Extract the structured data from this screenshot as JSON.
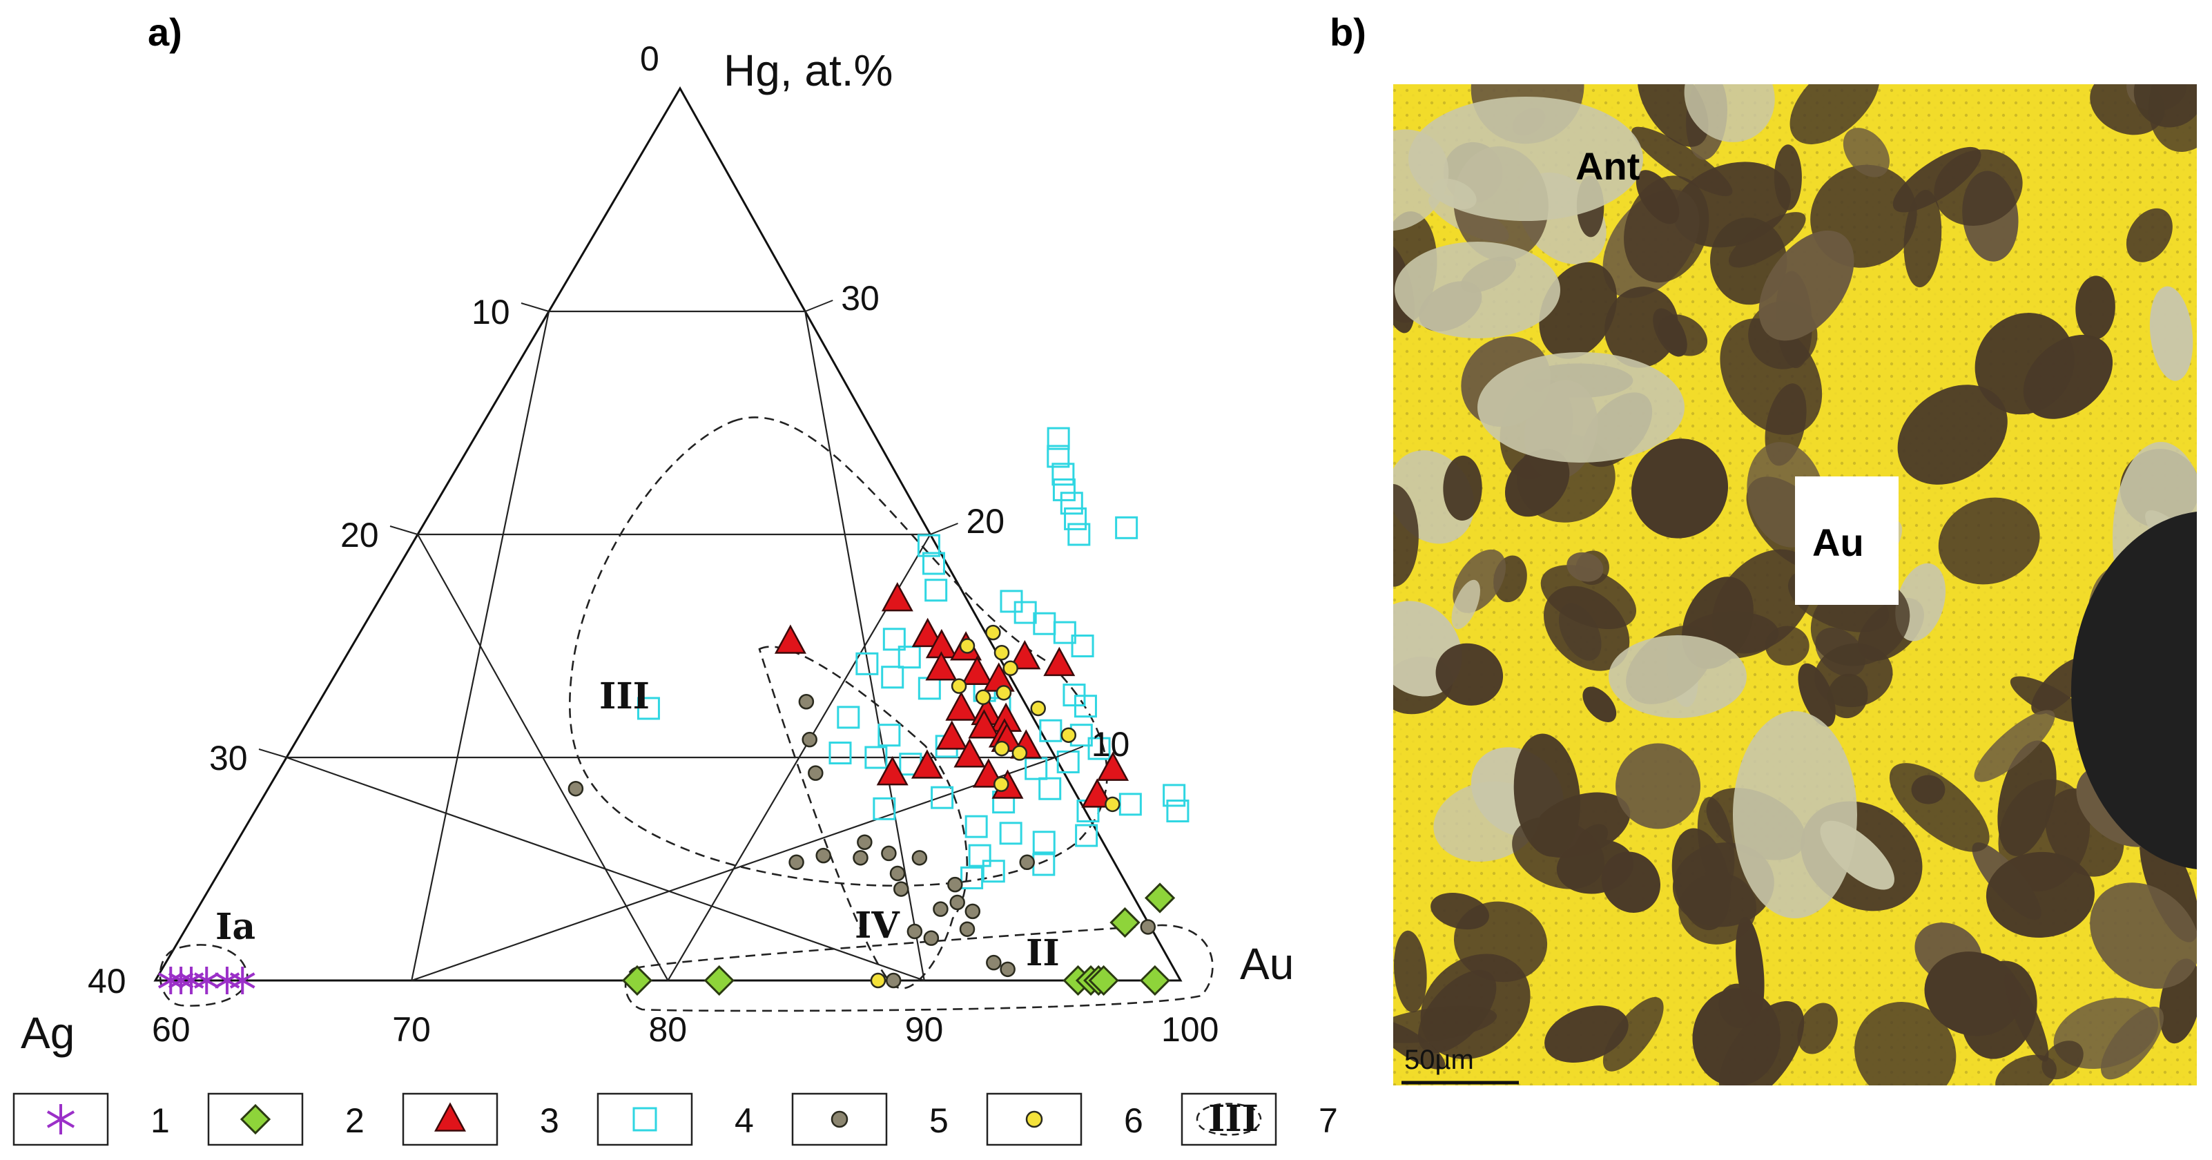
{
  "panels": {
    "a": "a)",
    "b": "b)"
  },
  "chart_data": {
    "type": "scatter",
    "subtype": "ternary",
    "apex_labels": {
      "top": "Hg, at.%",
      "left": "Ag",
      "right": "Au"
    },
    "au_ticks": [
      "60",
      "70",
      "80",
      "90",
      "100"
    ],
    "hg_left_ticks": [
      "0",
      "10",
      "20",
      "30",
      "40"
    ],
    "hg_right_ticks": [
      "30",
      "20",
      "10"
    ],
    "grid": true,
    "series": [
      {
        "legend": "1",
        "marker": "asterisk",
        "color": "#9b30c8",
        "points": [
          [
            60.6,
            0
          ],
          [
            61.0,
            0
          ],
          [
            61.4,
            0
          ],
          [
            62.0,
            0
          ],
          [
            62.8,
            0
          ],
          [
            63.4,
            0
          ]
        ]
      },
      {
        "legend": "2",
        "marker": "diamond",
        "color": "#8ed43a",
        "points": [
          [
            78.8,
            0
          ],
          [
            82.0,
            0
          ],
          [
            96.0,
            0
          ],
          [
            96.5,
            0
          ],
          [
            96.8,
            0
          ],
          [
            97.0,
            0
          ],
          [
            99.0,
            0
          ],
          [
            96.5,
            2.6
          ],
          [
            97.3,
            3.7
          ]
        ]
      },
      {
        "legend": "3",
        "marker": "triangle",
        "color": "#e0141a",
        "points": [
          [
            77.0,
            15.2
          ],
          [
            80.2,
            17.1
          ],
          [
            82.2,
            15.5
          ],
          [
            83.0,
            15.0
          ],
          [
            84.0,
            14.9
          ],
          [
            86.5,
            14.5
          ],
          [
            83.5,
            14.0
          ],
          [
            85.0,
            13.8
          ],
          [
            86.0,
            13.5
          ],
          [
            88.0,
            14.2
          ],
          [
            85.2,
            12.2
          ],
          [
            86.3,
            12.0
          ],
          [
            87.2,
            11.7
          ],
          [
            86.5,
            11.4
          ],
          [
            87.5,
            11.0
          ],
          [
            87.7,
            10.8
          ],
          [
            85.5,
            10.9
          ],
          [
            86.6,
            10.1
          ],
          [
            88.6,
            10.5
          ],
          [
            84.0,
            9.3
          ],
          [
            85.2,
            9.6
          ],
          [
            87.8,
            9.2
          ],
          [
            88.8,
            8.7
          ],
          [
            92.5,
            9.5
          ],
          [
            92.5,
            8.3
          ]
        ]
      },
      {
        "legend": "4",
        "marker": "square",
        "color": "#2fd6e2",
        "points": [
          [
            82.8,
            24.3
          ],
          [
            83.2,
            23.5
          ],
          [
            83.8,
            22.7
          ],
          [
            84.2,
            22.0
          ],
          [
            84.8,
            21.4
          ],
          [
            85.3,
            20.7
          ],
          [
            85.8,
            20.0
          ],
          [
            87.5,
            20.3
          ],
          [
            80.2,
            19.5
          ],
          [
            80.8,
            18.7
          ],
          [
            81.5,
            17.5
          ],
          [
            84.7,
            17.0
          ],
          [
            85.5,
            16.5
          ],
          [
            86.5,
            16.0
          ],
          [
            87.5,
            15.6
          ],
          [
            88.5,
            15.0
          ],
          [
            81.0,
            15.3
          ],
          [
            82.0,
            14.5
          ],
          [
            80.5,
            14.2
          ],
          [
            81.8,
            13.6
          ],
          [
            83.5,
            13.1
          ],
          [
            85.7,
            13.0
          ],
          [
            86.7,
            12.2
          ],
          [
            89.3,
            12.8
          ],
          [
            90.0,
            12.3
          ],
          [
            73.0,
            12.2
          ],
          [
            81.0,
            11.8
          ],
          [
            83.0,
            11.0
          ],
          [
            85.5,
            10.5
          ],
          [
            89.2,
            11.2
          ],
          [
            90.5,
            11.0
          ],
          [
            91.5,
            10.4
          ],
          [
            81.5,
            10.2
          ],
          [
            83.0,
            10.0
          ],
          [
            84.5,
            9.7
          ],
          [
            89.5,
            9.5
          ],
          [
            90.6,
            9.8
          ],
          [
            84.5,
            7.7
          ],
          [
            86.5,
            8.2
          ],
          [
            89.0,
            8.0
          ],
          [
            90.5,
            8.6
          ],
          [
            92.5,
            7.6
          ],
          [
            94.0,
            7.9
          ],
          [
            95.5,
            8.3
          ],
          [
            96.0,
            7.6
          ],
          [
            88.5,
            6.9
          ],
          [
            90.0,
            6.6
          ],
          [
            91.5,
            6.2
          ],
          [
            93.0,
            6.5
          ],
          [
            89.3,
            5.6
          ],
          [
            90.2,
            4.9
          ],
          [
            92.0,
            5.2
          ],
          [
            89.5,
            4.6
          ]
        ]
      },
      {
        "legend": "5",
        "marker": "circle",
        "color": "#8c8670",
        "points": [
          [
            79.0,
            12.5
          ],
          [
            80.0,
            10.8
          ],
          [
            81.0,
            9.3
          ],
          [
            72.0,
            8.6
          ],
          [
            84.5,
            6.2
          ],
          [
            83.2,
            5.6
          ],
          [
            82.3,
            5.3
          ],
          [
            84.7,
            5.5
          ],
          [
            85.7,
            5.7
          ],
          [
            87.0,
            5.5
          ],
          [
            86.5,
            4.8
          ],
          [
            91.3,
            5.3
          ],
          [
            87.0,
            4.1
          ],
          [
            89.0,
            4.3
          ],
          [
            89.0,
            3.2
          ],
          [
            89.5,
            3.5
          ],
          [
            90.3,
            3.1
          ],
          [
            88.5,
            2.2
          ],
          [
            90.5,
            2.3
          ],
          [
            89.3,
            1.9
          ],
          [
            92.3,
            0.8
          ],
          [
            93.0,
            0.5
          ],
          [
            88.8,
            0.0
          ],
          [
            97.5,
            2.4
          ]
        ]
      },
      {
        "legend": "6",
        "marker": "circle",
        "color": "#f4e23a",
        "points": [
          [
            84.0,
            15.0
          ],
          [
            84.7,
            15.6
          ],
          [
            85.5,
            14.7
          ],
          [
            86.2,
            14.0
          ],
          [
            84.6,
            13.2
          ],
          [
            85.8,
            12.7
          ],
          [
            86.5,
            12.9
          ],
          [
            88.2,
            12.2
          ],
          [
            87.7,
            10.4
          ],
          [
            88.5,
            10.2
          ],
          [
            90.0,
            11.0
          ],
          [
            88.5,
            8.8
          ],
          [
            93.3,
            7.9
          ],
          [
            88.2,
            0.0
          ]
        ]
      }
    ],
    "fields": [
      "Ia",
      "II",
      "III",
      "IV"
    ],
    "legend_items": [
      "1",
      "2",
      "3",
      "4",
      "5",
      "6",
      "7"
    ],
    "legend_field_sample": "III",
    "legend_placement": "bottom"
  },
  "photo": {
    "labels": {
      "ant": "Ant",
      "au": "Au"
    },
    "scale_bar": "50µm",
    "colors": {
      "gold": "#f2dc2a",
      "matrix": "#4a3a28",
      "antimony": "#c9c6a8",
      "void": "#202020"
    }
  }
}
